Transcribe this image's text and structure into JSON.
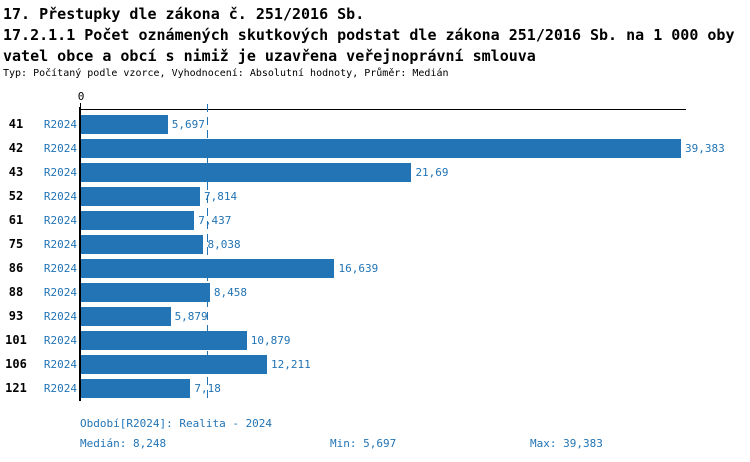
{
  "chart_data": {
    "type": "bar",
    "orientation": "horizontal",
    "title_line1": "17. Přestupky dle zákona č. 251/2016 Sb.",
    "title_line2": "17.2.1.1 Počet oznámených skutkových podstat dle zákona 251/2016 Sb. na 1 000 oby",
    "title_line3": "vatel obce a obcí s nimiž je uzavřena veřejnoprávní smlouva",
    "subtitle": "Typ: Počítaný podle vzorce, Vyhodnocení: Absolutní hodnoty, Průměr: Medián",
    "axis_zero_label": "0",
    "xlim": [
      0,
      39.383
    ],
    "grid": false,
    "legend": false,
    "period_label": "R2024",
    "categories": [
      "41",
      "42",
      "43",
      "52",
      "61",
      "75",
      "86",
      "88",
      "93",
      "101",
      "106",
      "121"
    ],
    "values": [
      5.697,
      39.383,
      21.69,
      7.814,
      7.437,
      8.038,
      16.639,
      8.458,
      5.879,
      10.879,
      12.211,
      7.18
    ],
    "value_labels": [
      "5,697",
      "39,383",
      "21,69",
      "7,814",
      "7,437",
      "8,038",
      "16,639",
      "8,458",
      "5,879",
      "10,879",
      "12,211",
      "7,18"
    ],
    "median": 8.248,
    "bar_color": "#2274b5",
    "text_color": "#2274b5",
    "axis_color": "#000000",
    "stats": {
      "period_text": "Období[R2024]: Realita - 2024",
      "median_text": "Medián: 8,248",
      "min_text": "Min: 5,697",
      "max_text": "Max: 39,383"
    }
  }
}
